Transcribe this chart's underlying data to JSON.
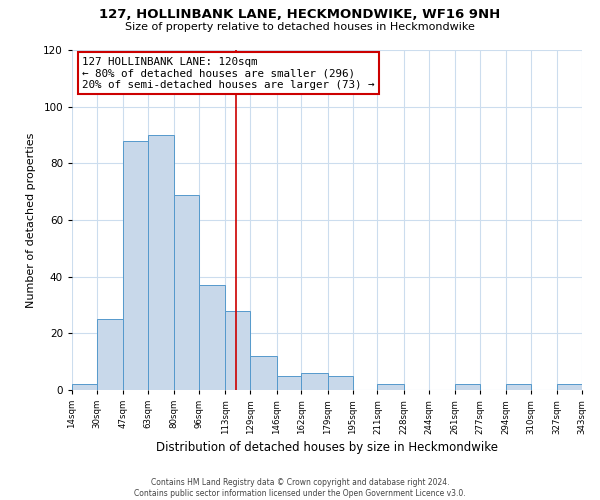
{
  "title": "127, HOLLINBANK LANE, HECKMONDWIKE, WF16 9NH",
  "subtitle": "Size of property relative to detached houses in Heckmondwike",
  "xlabel": "Distribution of detached houses by size in Heckmondwike",
  "ylabel": "Number of detached properties",
  "footer_line1": "Contains HM Land Registry data © Crown copyright and database right 2024.",
  "footer_line2": "Contains public sector information licensed under the Open Government Licence v3.0.",
  "bin_edges": [
    14,
    30,
    47,
    63,
    80,
    96,
    113,
    129,
    146,
    162,
    179,
    195,
    211,
    228,
    244,
    261,
    277,
    294,
    310,
    327,
    343
  ],
  "bin_counts": [
    2,
    25,
    88,
    90,
    69,
    37,
    28,
    12,
    5,
    6,
    5,
    0,
    2,
    0,
    0,
    2,
    0,
    2,
    0,
    2
  ],
  "bar_color": "#c8d8ea",
  "bar_edge_color": "#5599cc",
  "vline_x": 120,
  "vline_color": "#cc0000",
  "annotation_title": "127 HOLLINBANK LANE: 120sqm",
  "annotation_line1": "← 80% of detached houses are smaller (296)",
  "annotation_line2": "20% of semi-detached houses are larger (73) →",
  "annotation_box_color": "#ffffff",
  "annotation_box_edge": "#cc0000",
  "ylim": [
    0,
    120
  ],
  "yticks": [
    0,
    20,
    40,
    60,
    80,
    100,
    120
  ],
  "tick_labels": [
    "14sqm",
    "30sqm",
    "47sqm",
    "63sqm",
    "80sqm",
    "96sqm",
    "113sqm",
    "129sqm",
    "146sqm",
    "162sqm",
    "179sqm",
    "195sqm",
    "211sqm",
    "228sqm",
    "244sqm",
    "261sqm",
    "277sqm",
    "294sqm",
    "310sqm",
    "327sqm",
    "343sqm"
  ],
  "background_color": "#ffffff",
  "grid_color": "#ccddee"
}
